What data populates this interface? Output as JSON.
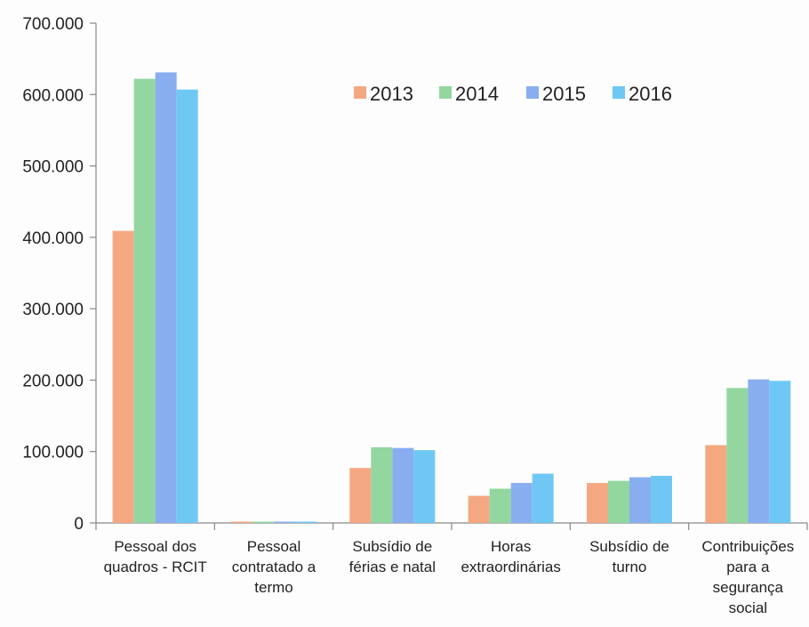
{
  "chart_data": {
    "type": "bar",
    "categories": [
      [
        "Pessoal dos",
        "quadros - RCIT"
      ],
      [
        "Pessoal",
        "contratado a",
        "termo"
      ],
      [
        "Subsídio de",
        "férias e natal"
      ],
      [
        "Horas",
        "extraordinárias"
      ],
      [
        "Subsídio de",
        "turno"
      ],
      [
        "Contribuições",
        "para a",
        "segurança",
        "social"
      ]
    ],
    "series": [
      {
        "name": "2013",
        "color": "#f4a882",
        "values": [
          409000,
          0,
          77000,
          38000,
          56000,
          109000
        ]
      },
      {
        "name": "2014",
        "color": "#93d6a0",
        "values": [
          622000,
          0,
          106000,
          48000,
          59000,
          189000
        ]
      },
      {
        "name": "2015",
        "color": "#88aef0",
        "values": [
          631000,
          0,
          105000,
          56000,
          64000,
          201000
        ]
      },
      {
        "name": "2016",
        "color": "#6fc8f4",
        "values": [
          607000,
          0,
          102000,
          69000,
          66000,
          199000
        ]
      }
    ],
    "ylim": [
      0,
      700000
    ],
    "yticks": [
      "0",
      "100.000",
      "200.000",
      "300.000",
      "400.000",
      "500.000",
      "600.000",
      "700.000"
    ],
    "grid": false,
    "legend_position": "top-center"
  }
}
